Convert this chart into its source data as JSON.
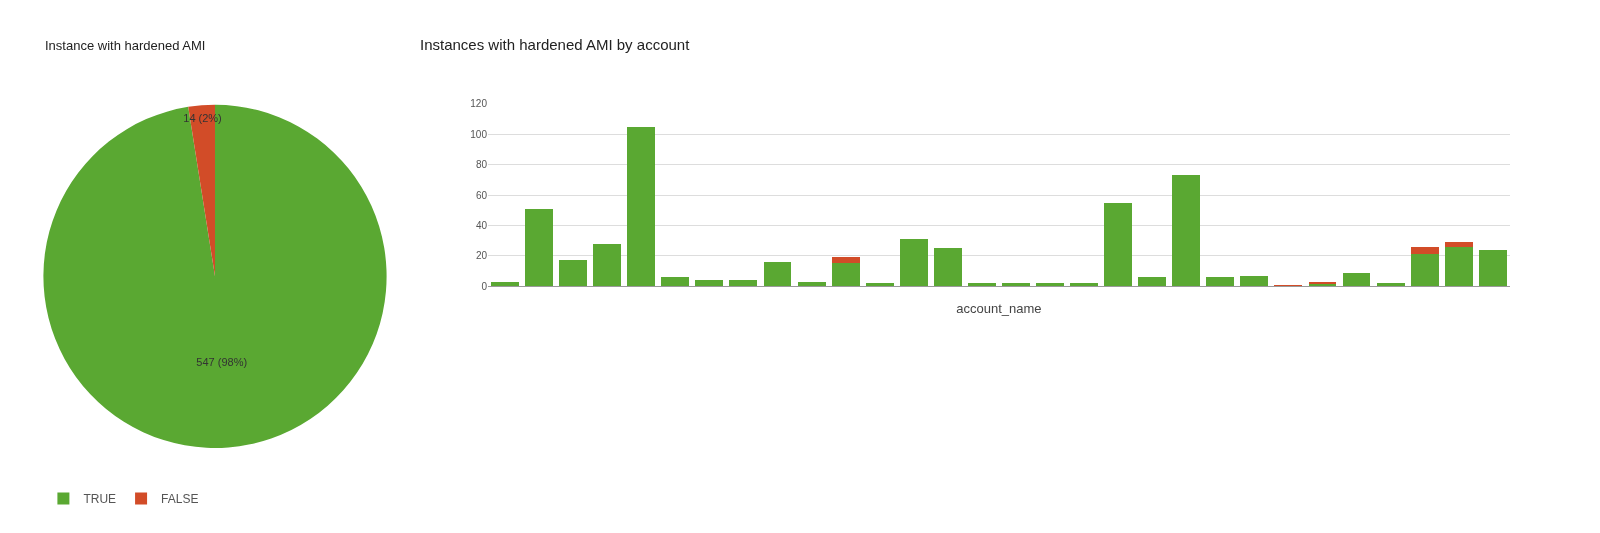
{
  "chart_data": [
    {
      "type": "pie",
      "title": "Instance with hardened AMI",
      "categories": [
        "TRUE",
        "FALSE"
      ],
      "values": [
        547,
        14
      ],
      "colors": [
        "#5aa832",
        "#d24c28"
      ],
      "value_labels": [
        "547 (98%)",
        "14 (2%)"
      ],
      "legend": "bottom left"
    },
    {
      "type": "bar",
      "title": "Instances with hardened AMI by account",
      "xlabel": "account_name",
      "stacked": true,
      "categories": [
        null,
        null,
        null,
        null,
        null,
        null,
        null,
        null,
        null,
        null,
        null,
        null,
        null,
        null,
        null,
        null,
        null,
        null,
        null,
        null,
        null,
        null,
        null,
        null,
        null,
        null,
        null,
        null,
        null,
        null
      ],
      "series": [
        {
          "color": "#5aa832",
          "values": [
            3,
            51,
            17,
            28,
            105,
            6,
            4,
            4,
            16,
            3,
            15,
            2,
            31,
            25,
            2,
            2,
            2,
            2,
            55,
            6,
            73,
            6,
            7,
            0,
            2,
            9,
            2,
            21,
            26,
            24
          ]
        },
        {
          "color": "#d24c28",
          "values": [
            0,
            0,
            0,
            0,
            0,
            0,
            0,
            0,
            0,
            0,
            4,
            0,
            0,
            0,
            0,
            0,
            0,
            0,
            0,
            0,
            0,
            0,
            0,
            1,
            1,
            0,
            0,
            5,
            3,
            0
          ]
        }
      ],
      "ylim": [
        0,
        120
      ],
      "yticks": [
        0,
        20,
        40,
        60,
        80,
        100,
        120
      ],
      "grid": "y",
      "legend": false
    }
  ]
}
